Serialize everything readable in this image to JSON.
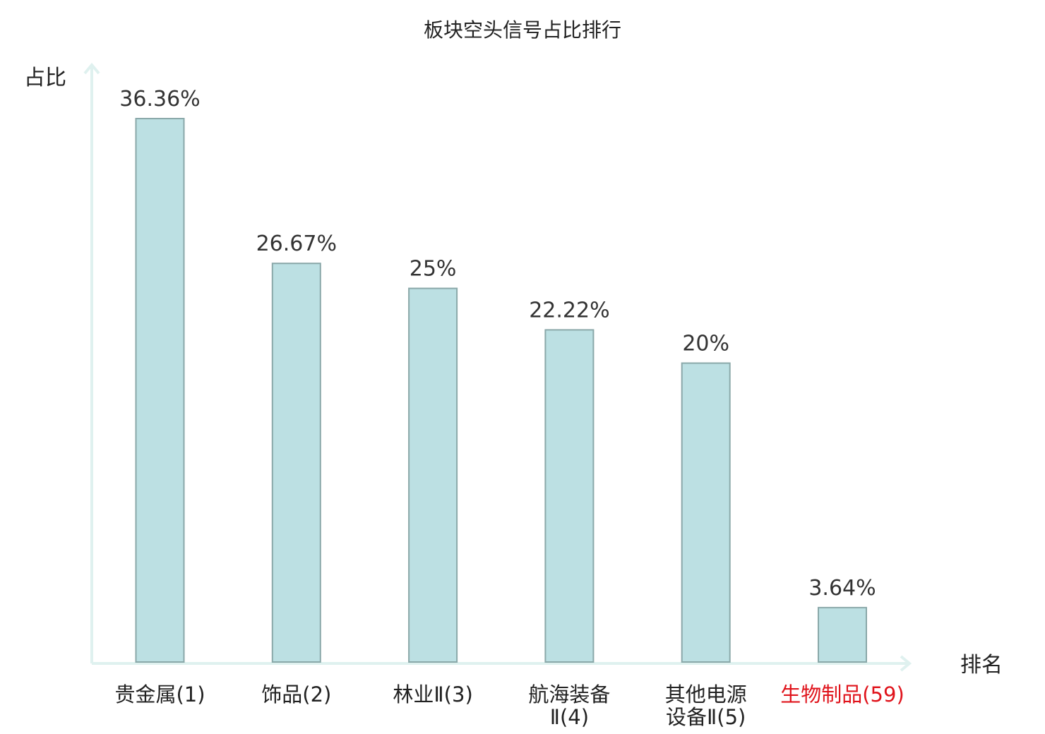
{
  "chart_data": {
    "type": "bar",
    "title": "板块空头信号占比排行",
    "ylabel": "占比",
    "xlabel": "排名",
    "ylim": [
      0,
      40
    ],
    "grid": false,
    "categories": [
      {
        "lines": [
          "贵金属(1)"
        ],
        "highlight": false
      },
      {
        "lines": [
          "饰品(2)"
        ],
        "highlight": false
      },
      {
        "lines": [
          "林业Ⅱ(3)"
        ],
        "highlight": false
      },
      {
        "lines": [
          "航海装备",
          "Ⅱ(4)"
        ],
        "highlight": false
      },
      {
        "lines": [
          "其他电源",
          "设备Ⅱ(5)"
        ],
        "highlight": false
      },
      {
        "lines": [
          "生物制品(59)"
        ],
        "highlight": true
      }
    ],
    "values": [
      36.36,
      26.67,
      25,
      22.22,
      20,
      3.64
    ],
    "value_labels": [
      "36.36%",
      "26.67%",
      "25%",
      "22.22%",
      "20%",
      "3.64%"
    ]
  },
  "colors": {
    "bar_fill": "#bce0e3",
    "bar_stroke": "#8aa8a9",
    "axis": "#dff1ef",
    "highlight": "#e0141c"
  }
}
